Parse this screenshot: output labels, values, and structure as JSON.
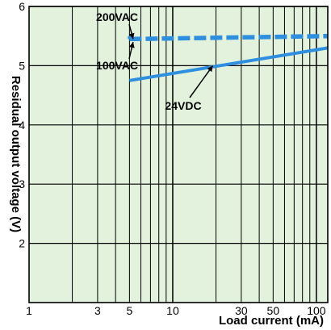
{
  "chart_data": {
    "type": "line",
    "title": "",
    "xlabel": "Load current (mA)",
    "ylabel": "Residual output voltage (V)",
    "x_scale": "log",
    "xlim": [
      1,
      120
    ],
    "ylim": [
      1,
      6
    ],
    "grid": true,
    "x_tick_labels": [
      {
        "value": 1,
        "label": "1"
      },
      {
        "value": 3,
        "label": "3"
      },
      {
        "value": 5,
        "label": "5"
      },
      {
        "value": 10,
        "label": "10"
      },
      {
        "value": 30,
        "label": "30"
      },
      {
        "value": 50,
        "label": "50"
      },
      {
        "value": 100,
        "label": "100"
      }
    ],
    "x_minor_ticks": [
      2,
      3,
      4,
      5,
      6,
      7,
      8,
      9,
      10,
      20,
      30,
      40,
      50,
      60,
      70,
      80,
      90,
      100
    ],
    "y_ticks": [
      2,
      3,
      4,
      5,
      6
    ],
    "series": [
      {
        "name": "200VAC",
        "style": "dashed",
        "x": [
          5,
          120
        ],
        "y": [
          5.45,
          5.5
        ],
        "color": "#2f8fdf"
      },
      {
        "name": "100VAC",
        "style": "solid",
        "x": [
          5,
          5
        ],
        "y": [
          5.45,
          5.5
        ],
        "color": "#2f8fdf"
      },
      {
        "name": "24VDC",
        "style": "solid",
        "x": [
          5,
          120
        ],
        "y": [
          4.75,
          5.3
        ],
        "color": "#2f8fdf"
      }
    ],
    "annotations": [
      {
        "text": "200VAC",
        "series": "200VAC",
        "target": [
          5.3,
          5.45
        ]
      },
      {
        "text": "100VAC",
        "series": "100VAC",
        "target": [
          5.3,
          5.4
        ]
      },
      {
        "text": "24VDC",
        "series": "24VDC",
        "target": [
          19,
          5.0
        ]
      }
    ],
    "colors": {
      "plot_background": "#e2f2dd",
      "grid": "#000000",
      "line": "#2f8fdf"
    }
  }
}
